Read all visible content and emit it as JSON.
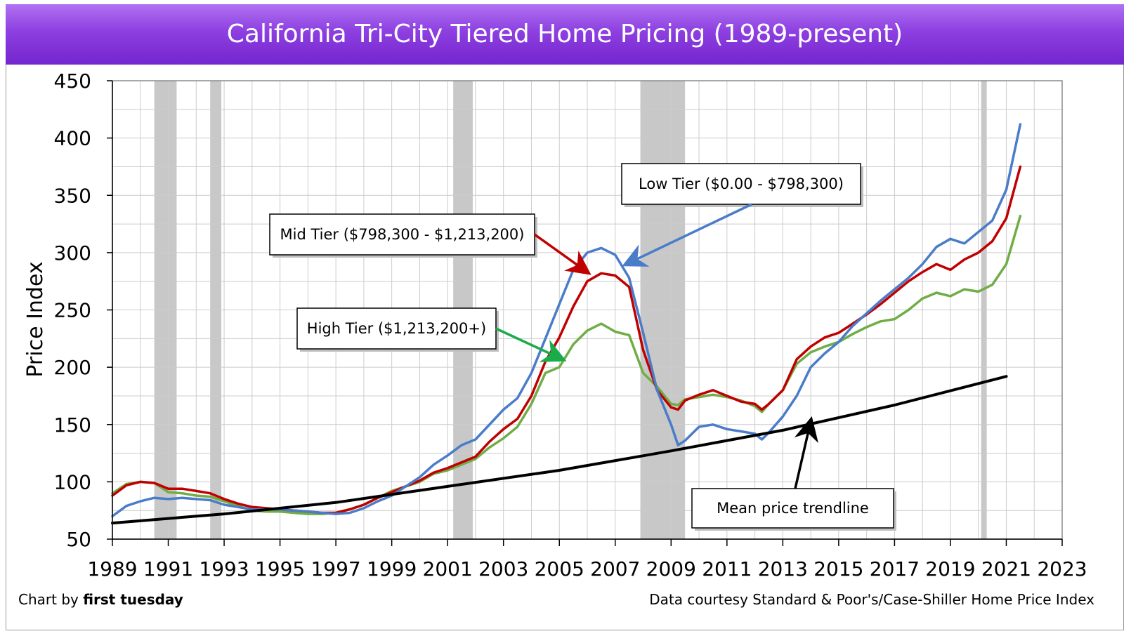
{
  "title": "California Tri-City Tiered Home Pricing (1989-present)",
  "footer": {
    "credit_prefix": "Chart by ",
    "credit_brand": "first tuesday",
    "source": "Data courtesy Standard & Poor's/Case-Shiller Home Price Index"
  },
  "colors": {
    "title_bar": "#8d3fe0",
    "low_tier": "#4a7cc9",
    "mid_tier": "#c00000",
    "high_tier": "#70ad47",
    "trendline": "#000000",
    "recession": "#c8c8c8",
    "grid": "#cccccc"
  },
  "chart_data": {
    "type": "line",
    "title": "California Tri-City Tiered Home Pricing (1989-present)",
    "xlabel": "",
    "ylabel": "Price Index",
    "xlim": [
      1989,
      2023
    ],
    "ylim": [
      50,
      450
    ],
    "x_ticks": [
      "1989",
      "1991",
      "1993",
      "1995",
      "1997",
      "1999",
      "2001",
      "2003",
      "2005",
      "2007",
      "2009",
      "2011",
      "2013",
      "2015",
      "2017",
      "2019",
      "2021",
      "2023"
    ],
    "y_ticks": [
      "50",
      "100",
      "150",
      "200",
      "250",
      "300",
      "350",
      "400",
      "450"
    ],
    "grid": true,
    "legend": "none",
    "recession_bands": [
      [
        1990.5,
        1991.3
      ],
      [
        1992.5,
        1992.9
      ],
      [
        2001.2,
        2001.9
      ],
      [
        2007.9,
        2009.5
      ],
      [
        2020.1,
        2020.3
      ]
    ],
    "series": [
      {
        "name": "Low Tier ($0.00 - $798,300)",
        "x": [
          1989,
          1989.5,
          1990,
          1990.5,
          1991,
          1991.5,
          1992,
          1992.5,
          1993,
          1993.5,
          1994,
          1994.5,
          1995,
          1995.5,
          1996,
          1996.5,
          1997,
          1997.5,
          1998,
          1998.5,
          1999,
          1999.5,
          2000,
          2000.5,
          2001,
          2001.5,
          2002,
          2002.5,
          2003,
          2003.5,
          2004,
          2004.5,
          2005,
          2005.5,
          2006,
          2006.5,
          2007,
          2007.5,
          2008,
          2008.5,
          2009,
          2009.25,
          2009.5,
          2010,
          2010.5,
          2011,
          2011.5,
          2012,
          2012.25,
          2012.5,
          2013,
          2013.5,
          2014,
          2014.5,
          2015,
          2015.5,
          2016,
          2016.5,
          2017,
          2017.5,
          2018,
          2018.5,
          2019,
          2019.5,
          2020,
          2020.5,
          2021,
          2021.5
        ],
        "y": [
          70,
          79,
          83,
          86,
          85,
          86,
          85,
          84,
          80,
          78,
          76,
          76,
          76,
          75,
          74,
          73,
          72,
          73,
          77,
          83,
          88,
          96,
          104,
          115,
          123,
          132,
          137,
          150,
          163,
          173,
          195,
          225,
          255,
          285,
          300,
          304,
          298,
          278,
          230,
          180,
          150,
          132,
          136,
          148,
          150,
          146,
          144,
          142,
          137,
          143,
          157,
          175,
          200,
          212,
          222,
          236,
          247,
          258,
          268,
          278,
          290,
          305,
          312,
          308,
          318,
          328,
          355,
          412
        ]
      },
      {
        "name": "Mid Tier ($798,300 - $1,213,200)",
        "x": [
          1989,
          1989.5,
          1990,
          1990.5,
          1991,
          1991.5,
          1992,
          1992.5,
          1993,
          1993.5,
          1994,
          1994.5,
          1995,
          1995.5,
          1996,
          1996.5,
          1997,
          1997.5,
          1998,
          1998.5,
          1999,
          1999.5,
          2000,
          2000.5,
          2001,
          2001.5,
          2002,
          2002.5,
          2003,
          2003.5,
          2004,
          2004.5,
          2005,
          2005.5,
          2006,
          2006.5,
          2007,
          2007.5,
          2008,
          2008.5,
          2009,
          2009.25,
          2009.5,
          2010,
          2010.5,
          2011,
          2011.5,
          2012,
          2012.25,
          2012.5,
          2013,
          2013.5,
          2014,
          2014.5,
          2015,
          2015.5,
          2016,
          2016.5,
          2017,
          2017.5,
          2018,
          2018.5,
          2019,
          2019.5,
          2020,
          2020.5,
          2021,
          2021.5
        ],
        "y": [
          88,
          97,
          100,
          99,
          94,
          94,
          92,
          90,
          85,
          81,
          78,
          77,
          76,
          75,
          74,
          73,
          73,
          76,
          80,
          86,
          91,
          96,
          101,
          108,
          112,
          117,
          122,
          135,
          146,
          155,
          175,
          205,
          226,
          253,
          275,
          282,
          280,
          270,
          215,
          180,
          165,
          163,
          171,
          176,
          180,
          175,
          170,
          168,
          163,
          168,
          180,
          207,
          218,
          226,
          230,
          238,
          246,
          255,
          265,
          275,
          283,
          290,
          285,
          294,
          300,
          310,
          330,
          375
        ]
      },
      {
        "name": "High Tier ($1,213,200+)",
        "x": [
          1989,
          1989.5,
          1990,
          1990.5,
          1991,
          1991.5,
          1992,
          1992.5,
          1993,
          1993.5,
          1994,
          1994.5,
          1995,
          1995.5,
          1996,
          1996.5,
          1997,
          1997.5,
          1998,
          1998.5,
          1999,
          1999.5,
          2000,
          2000.5,
          2001,
          2001.5,
          2002,
          2002.5,
          2003,
          2003.5,
          2004,
          2004.5,
          2005,
          2005.5,
          2006,
          2006.5,
          2007,
          2007.5,
          2008,
          2008.5,
          2009,
          2009.25,
          2009.5,
          2010,
          2010.5,
          2011,
          2011.5,
          2012,
          2012.25,
          2012.5,
          2013,
          2013.5,
          2014,
          2014.5,
          2015,
          2015.5,
          2016,
          2016.5,
          2017,
          2017.5,
          2018,
          2018.5,
          2019,
          2019.5,
          2020,
          2020.5,
          2021,
          2021.5
        ],
        "y": [
          90,
          98,
          100,
          99,
          91,
          90,
          88,
          87,
          83,
          79,
          75,
          74,
          74,
          73,
          72,
          72,
          73,
          76,
          80,
          86,
          92,
          96,
          100,
          107,
          110,
          115,
          120,
          130,
          138,
          148,
          168,
          195,
          200,
          220,
          232,
          238,
          231,
          228,
          195,
          183,
          168,
          167,
          172,
          174,
          176,
          174,
          171,
          166,
          161,
          168,
          180,
          203,
          213,
          218,
          222,
          229,
          235,
          240,
          242,
          250,
          260,
          265,
          262,
          268,
          266,
          272,
          290,
          332
        ]
      },
      {
        "name": "Mean price trendline",
        "x": [
          1989,
          1993,
          1997,
          2001,
          2005,
          2009,
          2013,
          2017,
          2021
        ],
        "y": [
          64,
          72,
          82,
          96,
          110,
          127,
          145,
          167,
          192
        ]
      }
    ],
    "annotations": [
      {
        "text": "Low Tier ($0.00 - $798,300)",
        "series": 0,
        "target": [
          2007.4,
          290
        ]
      },
      {
        "text": "Mid Tier ($798,300 - $1,213,200)",
        "series": 1,
        "target": [
          2006.0,
          283
        ]
      },
      {
        "text": "High Tier ($1,213,200+)",
        "series": 2,
        "target": [
          2005.1,
          207
        ]
      },
      {
        "text": "Mean price trendline",
        "series": 3,
        "target": [
          2014.0,
          153
        ]
      }
    ]
  }
}
